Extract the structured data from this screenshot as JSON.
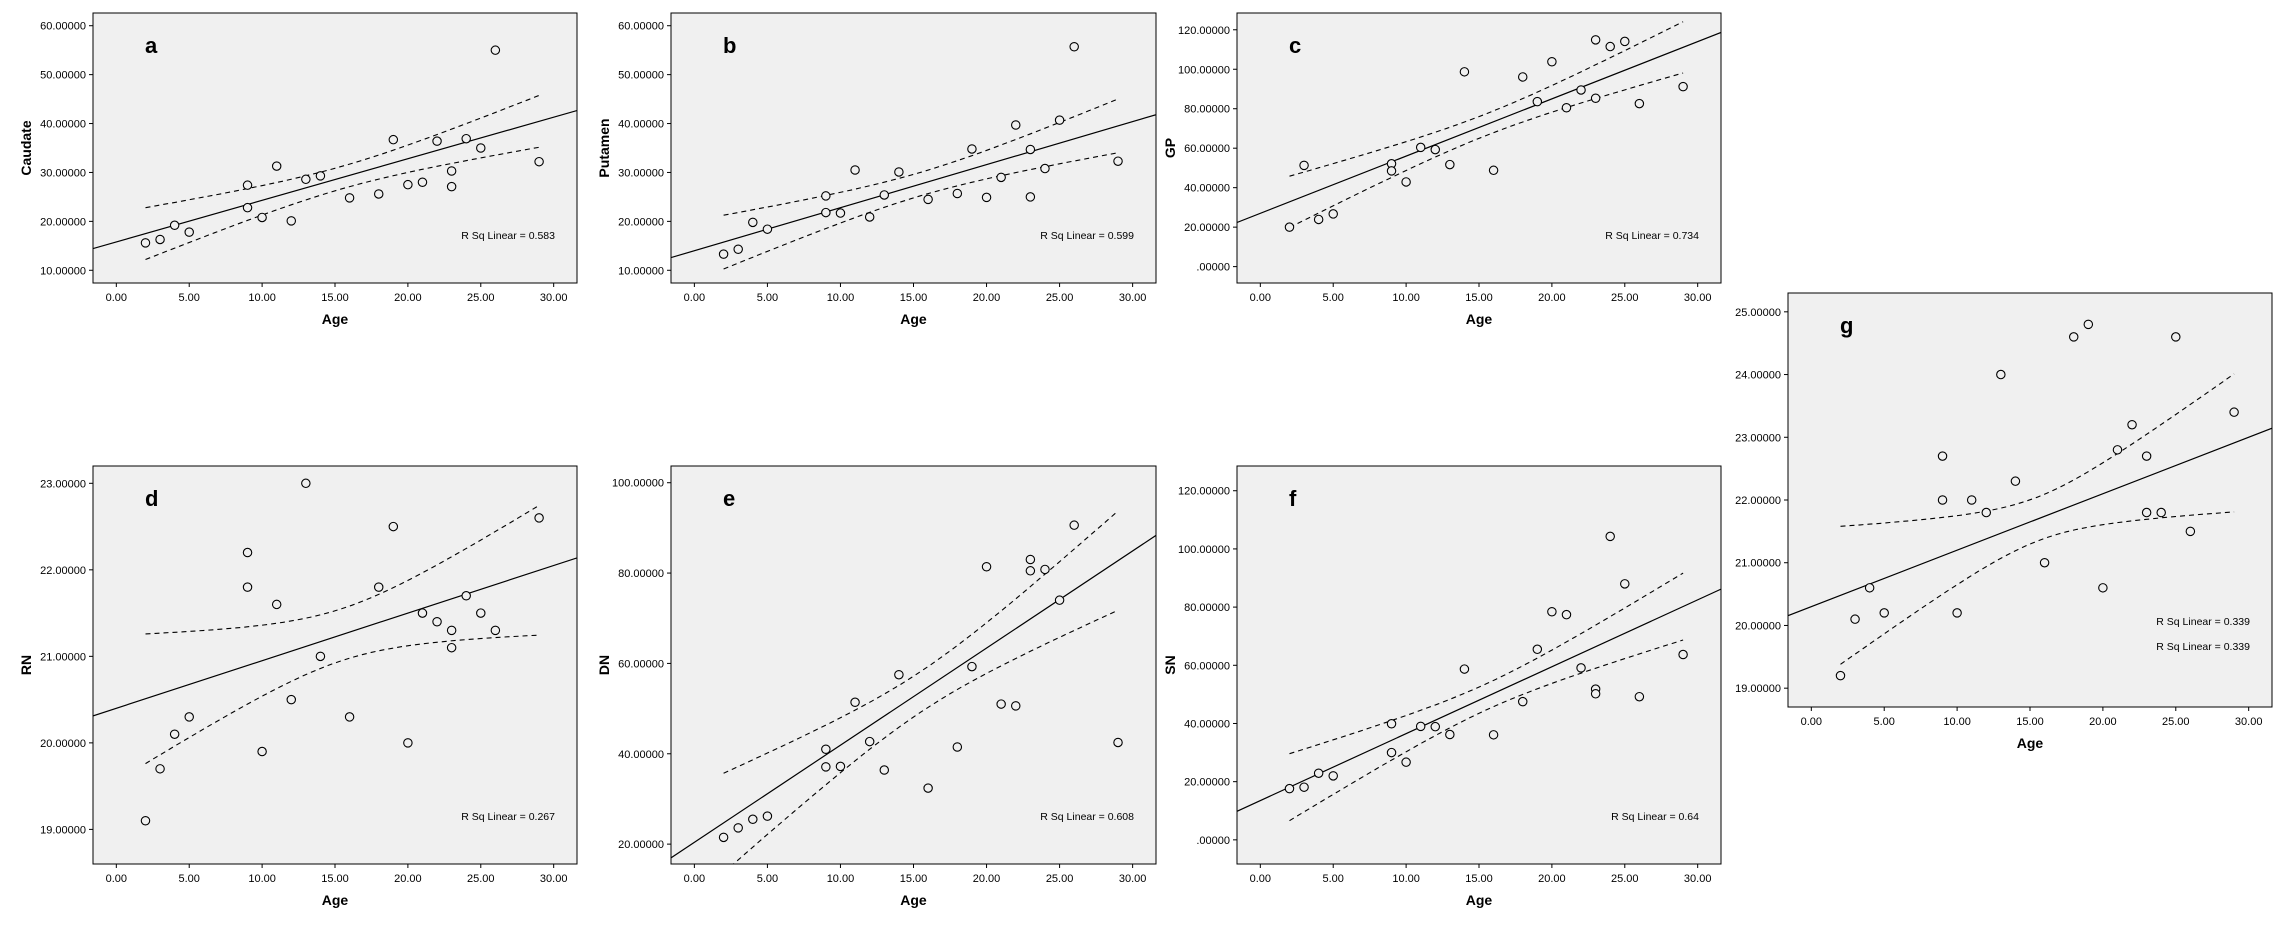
{
  "chart_data": [
    {
      "type": "scatter",
      "panel": "a",
      "xlabel": "Age",
      "ylabel": "Caudate",
      "xlim": [
        -1.6,
        31.6
      ],
      "ylim": [
        7.4,
        62.6
      ],
      "xticks": [
        "0.00",
        "5.00",
        "10.00",
        "15.00",
        "20.00",
        "25.00",
        "30.00"
      ],
      "xtick_values": [
        0,
        5,
        10,
        15,
        20,
        25,
        30
      ],
      "yticks": [
        "10.00000",
        "20.00000",
        "30.00000",
        "40.00000",
        "50.00000",
        "60.00000"
      ],
      "ytick_values": [
        10,
        20,
        30,
        40,
        50,
        60
      ],
      "annotations": [
        "R Sq Linear = 0.583"
      ],
      "fit": {
        "intercept": 15.8,
        "slope": 0.85
      },
      "ci": {
        "xbar": 15.5,
        "half_at_mean": 2.3,
        "half_at_end": 5.3
      },
      "x": [
        2,
        3,
        4,
        5,
        9,
        9,
        10,
        11,
        12,
        13,
        14,
        16,
        18,
        19,
        20,
        21,
        22,
        23,
        23,
        24,
        25,
        26,
        29
      ],
      "y": [
        15.6,
        16.3,
        19.2,
        17.8,
        27.4,
        22.8,
        20.8,
        31.3,
        20.1,
        28.6,
        29.3,
        24.8,
        25.6,
        36.7,
        27.5,
        28.0,
        36.4,
        30.3,
        27.1,
        36.9,
        35.0,
        55.0,
        32.2
      ]
    },
    {
      "type": "scatter",
      "panel": "b",
      "xlabel": "Age",
      "ylabel": "Putamen",
      "xlim": [
        -1.6,
        31.6
      ],
      "ylim": [
        7.4,
        62.6
      ],
      "xticks": [
        "0.00",
        "5.00",
        "10.00",
        "15.00",
        "20.00",
        "25.00",
        "30.00"
      ],
      "xtick_values": [
        0,
        5,
        10,
        15,
        20,
        25,
        30
      ],
      "yticks": [
        "10.00000",
        "20.00000",
        "30.00000",
        "40.00000",
        "50.00000",
        "60.00000"
      ],
      "ytick_values": [
        10,
        20,
        30,
        40,
        50,
        60
      ],
      "annotations": [
        "R Sq Linear = 0.599"
      ],
      "fit": {
        "intercept": 14.0,
        "slope": 0.88
      },
      "ci": {
        "xbar": 15.5,
        "half_at_mean": 2.4,
        "half_at_end": 5.5
      },
      "x": [
        2,
        3,
        4,
        5,
        9,
        9,
        10,
        11,
        12,
        13,
        14,
        16,
        18,
        19,
        20,
        21,
        22,
        23,
        23,
        24,
        25,
        26,
        29
      ],
      "y": [
        13.3,
        14.3,
        19.8,
        18.4,
        25.2,
        21.8,
        21.7,
        30.5,
        20.9,
        25.4,
        30.1,
        24.5,
        25.7,
        34.8,
        24.9,
        29.0,
        39.7,
        34.7,
        25.0,
        30.8,
        40.7,
        55.7,
        32.3
      ]
    },
    {
      "type": "scatter",
      "panel": "c",
      "xlabel": "Age",
      "ylabel": "GP",
      "xlim": [
        -1.6,
        31.6
      ],
      "ylim": [
        -8.3,
        128.5
      ],
      "xticks": [
        "0.00",
        "5.00",
        "10.00",
        "15.00",
        "20.00",
        "25.00",
        "30.00"
      ],
      "xtick_values": [
        0,
        5,
        10,
        15,
        20,
        25,
        30
      ],
      "yticks": [
        ".00000",
        "20.00000",
        "40.00000",
        "60.00000",
        "80.00000",
        "100.00000",
        "120.00000"
      ],
      "ytick_values": [
        0,
        20,
        40,
        60,
        80,
        100,
        120
      ],
      "annotations": [
        "R Sq Linear = 0.734"
      ],
      "fit": {
        "intercept": 27.0,
        "slope": 2.9
      },
      "ci": {
        "xbar": 15.5,
        "half_at_mean": 5.5,
        "half_at_end": 13.0
      },
      "x": [
        2,
        3,
        4,
        5,
        9,
        9,
        10,
        11,
        12,
        13,
        14,
        16,
        18,
        19,
        20,
        21,
        22,
        23,
        23,
        24,
        25,
        26,
        29
      ],
      "y": [
        20.0,
        51.3,
        23.9,
        26.7,
        52.1,
        48.5,
        42.9,
        60.4,
        59.3,
        51.7,
        98.7,
        48.8,
        96.1,
        83.6,
        103.8,
        80.5,
        89.5,
        114.9,
        85.3,
        111.5,
        114.1,
        82.6,
        91.2
      ]
    },
    {
      "type": "scatter",
      "panel": "d",
      "xlabel": "Age",
      "ylabel": "RN",
      "xlim": [
        -1.6,
        31.6
      ],
      "ylim": [
        18.6,
        23.2
      ],
      "xticks": [
        "0.00",
        "5.00",
        "10.00",
        "15.00",
        "20.00",
        "25.00",
        "30.00"
      ],
      "xtick_values": [
        0,
        5,
        10,
        15,
        20,
        25,
        30
      ],
      "yticks": [
        "19.00000",
        "20.00000",
        "21.00000",
        "22.00000",
        "23.00000"
      ],
      "ytick_values": [
        19,
        20,
        21,
        22,
        23
      ],
      "annotations": [
        "R Sq Linear = 0.267"
      ],
      "fit": {
        "intercept": 20.4,
        "slope": 0.055
      },
      "ci": {
        "xbar": 15.5,
        "half_at_mean": 0.3,
        "half_at_end": 0.75
      },
      "x": [
        2,
        3,
        4,
        5,
        9,
        9,
        10,
        11,
        12,
        13,
        14,
        16,
        18,
        19,
        20,
        21,
        22,
        23,
        23,
        24,
        25,
        26,
        29
      ],
      "y": [
        19.1,
        19.7,
        20.1,
        20.3,
        22.2,
        21.8,
        19.9,
        21.6,
        20.5,
        23.0,
        21.0,
        20.3,
        21.8,
        22.5,
        20.0,
        21.5,
        21.4,
        21.3,
        21.1,
        21.7,
        21.5,
        21.3,
        22.6
      ]
    },
    {
      "type": "scatter",
      "panel": "e",
      "xlabel": "Age",
      "ylabel": "DN",
      "xlim": [
        -1.6,
        31.6
      ],
      "ylim": [
        15.6,
        103.7
      ],
      "xticks": [
        "0.00",
        "5.00",
        "10.00",
        "15.00",
        "20.00",
        "25.00",
        "30.00"
      ],
      "xtick_values": [
        0,
        5,
        10,
        15,
        20,
        25,
        30
      ],
      "yticks": [
        "20.00000",
        "40.00000",
        "60.00000",
        "80.00000",
        "100.00000"
      ],
      "ytick_values": [
        20,
        40,
        60,
        80,
        100
      ],
      "annotations": [
        "R Sq Linear = 0.608"
      ],
      "fit": {
        "intercept": 20.4,
        "slope": 2.15
      },
      "ci": {
        "xbar": 15.5,
        "half_at_mean": 4.5,
        "half_at_end": 11.0
      },
      "x": [
        2,
        3,
        4,
        5,
        9,
        9,
        10,
        11,
        12,
        13,
        14,
        16,
        18,
        19,
        20,
        21,
        22,
        23,
        23,
        24,
        25,
        26,
        29
      ],
      "y": [
        21.5,
        23.6,
        25.5,
        26.2,
        41.0,
        37.1,
        37.2,
        51.4,
        42.7,
        36.4,
        57.5,
        32.4,
        41.5,
        59.3,
        81.4,
        51.0,
        50.6,
        83.0,
        80.5,
        80.8,
        74.0,
        90.6,
        42.5
      ]
    },
    {
      "type": "scatter",
      "panel": "f",
      "xlabel": "Age",
      "ylabel": "SN",
      "xlim": [
        -1.6,
        31.6
      ],
      "ylim": [
        -8.3,
        128.5
      ],
      "xticks": [
        "0.00",
        "5.00",
        "10.00",
        "15.00",
        "20.00",
        "25.00",
        "30.00"
      ],
      "xtick_values": [
        0,
        5,
        10,
        15,
        20,
        25,
        30
      ],
      "yticks": [
        ".00000",
        "20.00000",
        "40.00000",
        "60.00000",
        "80.00000",
        "100.00000",
        "120.00000"
      ],
      "ytick_values": [
        0,
        20,
        40,
        60,
        80,
        100,
        120
      ],
      "annotations": [
        "R Sq Linear = 0.64"
      ],
      "fit": {
        "intercept": 13.5,
        "slope": 2.3
      },
      "ci": {
        "xbar": 15.5,
        "half_at_mean": 4.5,
        "half_at_end": 11.5
      },
      "x": [
        2,
        3,
        4,
        5,
        9,
        9,
        10,
        11,
        12,
        13,
        14,
        16,
        18,
        19,
        20,
        21,
        22,
        23,
        23,
        24,
        25,
        26,
        29
      ],
      "y": [
        17.6,
        18.1,
        22.9,
        22.0,
        39.9,
        30.0,
        26.7,
        39.0,
        38.9,
        36.2,
        58.7,
        36.1,
        47.5,
        65.5,
        78.4,
        77.4,
        59.1,
        51.8,
        50.2,
        104.3,
        88.0,
        49.2,
        63.7
      ]
    },
    {
      "type": "scatter",
      "panel": "g",
      "xlabel": "Age",
      "ylabel": "",
      "xlim": [
        -1.6,
        31.6
      ],
      "ylim": [
        18.7,
        25.3
      ],
      "xticks": [
        "0.00",
        "5.00",
        "10.00",
        "15.00",
        "20.00",
        "25.00",
        "30.00"
      ],
      "xtick_values": [
        0,
        5,
        10,
        15,
        20,
        25,
        30
      ],
      "yticks": [
        "19.00000",
        "20.00000",
        "21.00000",
        "22.00000",
        "23.00000",
        "24.00000",
        "25.00000"
      ],
      "ytick_values": [
        19,
        20,
        21,
        22,
        23,
        24,
        25
      ],
      "annotations": [
        "R Sq Linear = 0.339",
        "R Sq Linear = 0.339"
      ],
      "fit": {
        "intercept": 20.3,
        "slope": 0.09
      },
      "ci": {
        "xbar": 15.5,
        "half_at_mean": 0.35,
        "half_at_end": 1.1
      },
      "x": [
        2,
        3,
        4,
        5,
        9,
        9,
        10,
        11,
        12,
        13,
        14,
        16,
        18,
        19,
        20,
        21,
        22,
        23,
        23,
        24,
        25,
        26,
        29
      ],
      "y": [
        19.2,
        20.1,
        20.6,
        20.2,
        22.7,
        22.0,
        20.2,
        22.0,
        21.8,
        24.0,
        22.3,
        21.0,
        24.6,
        24.8,
        20.6,
        22.8,
        23.2,
        22.7,
        21.8,
        21.8,
        24.6,
        21.5,
        23.4
      ]
    }
  ]
}
